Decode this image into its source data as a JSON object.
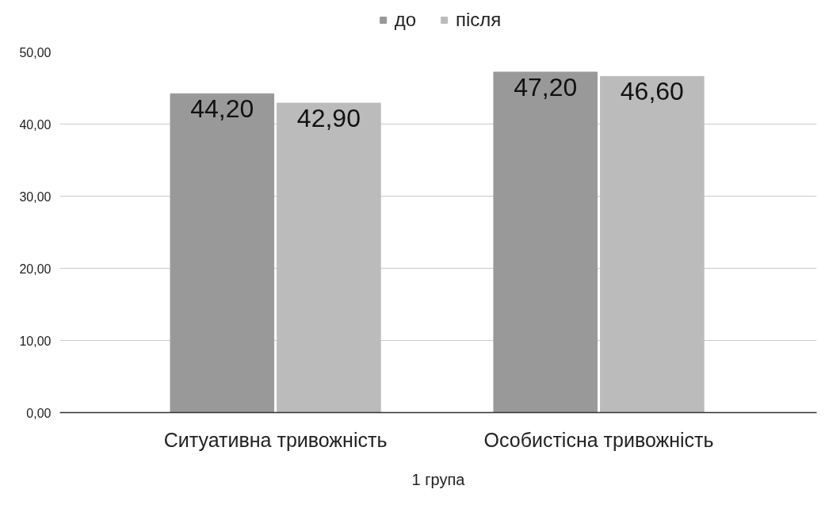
{
  "chart_data": {
    "type": "bar",
    "xlabel": "1 група",
    "categories": [
      "Ситуативна тривожність",
      "Особистісна тривожність"
    ],
    "series": [
      {
        "name": "до",
        "color": "#999999",
        "values": [
          44.2,
          47.2
        ],
        "value_labels": [
          "44,20",
          "47,20"
        ]
      },
      {
        "name": "після",
        "color": "#bbbbbb",
        "values": [
          42.9,
          46.6
        ],
        "value_labels": [
          "42,90",
          "46,60"
        ]
      }
    ],
    "ylim": [
      0,
      50
    ],
    "yticks": [
      {
        "value": 0,
        "label": "0,00"
      },
      {
        "value": 10,
        "label": "10,00"
      },
      {
        "value": 20,
        "label": "20,00"
      },
      {
        "value": 30,
        "label": "30,00"
      },
      {
        "value": 40,
        "label": "40,00"
      },
      {
        "value": 50,
        "label": "50,00"
      }
    ],
    "grid": "y",
    "legend": "top"
  }
}
